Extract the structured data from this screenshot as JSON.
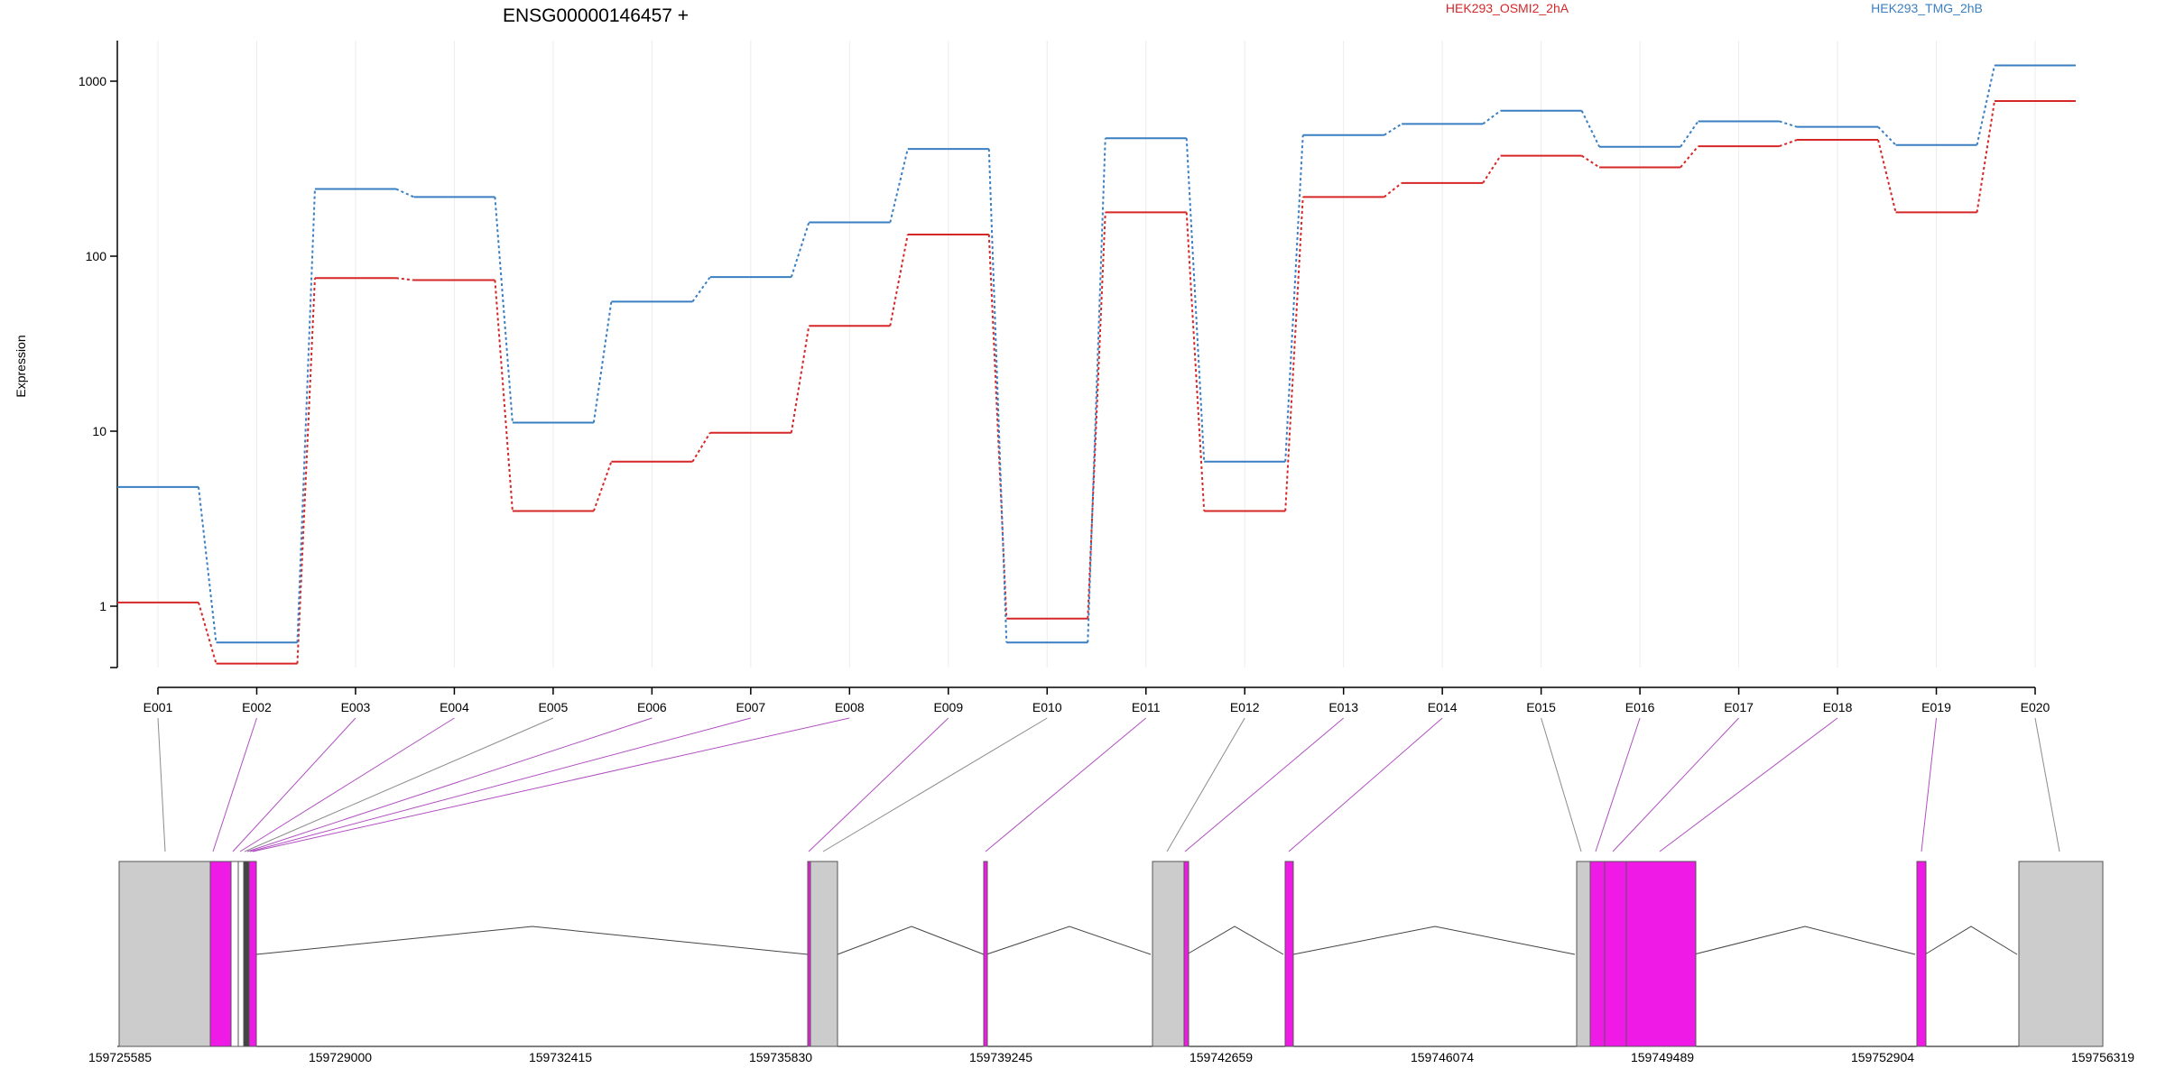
{
  "chart_data": {
    "type": "line",
    "title": "ENSG00000146457 +",
    "ylabel": "Expression",
    "yscale": "log",
    "yticks": [
      1,
      10,
      100,
      1000
    ],
    "ylim": [
      0.5,
      1700
    ],
    "grid": "vertical",
    "legend_position": "top-right",
    "categories": [
      "E001",
      "E002",
      "E003",
      "E004",
      "E005",
      "E006",
      "E007",
      "E008",
      "E009",
      "E010",
      "E011",
      "E012",
      "E013",
      "E014",
      "E015",
      "E016",
      "E017",
      "E018",
      "E019",
      "E020"
    ],
    "series": [
      {
        "name": "HEK293_OSMI2_2hA",
        "color": "#d62728",
        "values": [
          1.05,
          0.47,
          75,
          73,
          3.5,
          6.7,
          9.8,
          40,
          133,
          0.85,
          178,
          3.5,
          218,
          262,
          375,
          322,
          425,
          462,
          178,
          770
        ]
      },
      {
        "name": "HEK293_TMG_2hB",
        "color": "#3a7fc1",
        "values": [
          4.8,
          0.62,
          242,
          218,
          11.2,
          55,
          76,
          156,
          410,
          0.62,
          472,
          6.7,
          492,
          570,
          678,
          422,
          590,
          548,
          432,
          1230
        ]
      }
    ],
    "gene_model": {
      "coord_ticks": [
        "159725585",
        "159729000",
        "159732415",
        "159735830",
        "159739245",
        "159742659",
        "159746074",
        "159749489",
        "159752904",
        "159756319"
      ],
      "exon_color": "#f01ae6",
      "utr_color": "#cccccc"
    }
  }
}
